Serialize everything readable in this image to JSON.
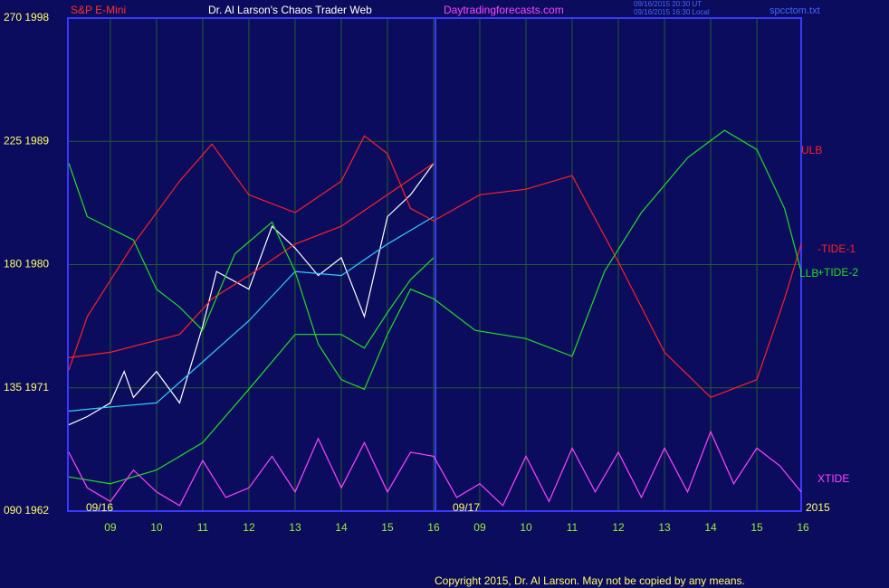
{
  "chart_data": {
    "type": "line",
    "title": "Dr. Al Larson's Chaos Trader Web",
    "symbol": "S&P E-Mini",
    "website": "Daytradingforecasts.com",
    "timestamps": [
      "09/16/2015 20:30 UT",
      "09/16/2015 16:30 Local"
    ],
    "file": "spcctom.txt",
    "dates": [
      "09/16",
      "09/17"
    ],
    "year": "2015",
    "copyright": "Copyright 2015, Dr. Al Larson. May not be copied by any means.",
    "grid": true,
    "xlim": [
      -0.92,
      14.96
    ],
    "xticks": [
      {
        "value": 0,
        "label": "09"
      },
      {
        "value": 1,
        "label": "10"
      },
      {
        "value": 2,
        "label": "11"
      },
      {
        "value": 3,
        "label": "12"
      },
      {
        "value": 4,
        "label": "13"
      },
      {
        "value": 5,
        "label": "14"
      },
      {
        "value": 6,
        "label": "15"
      },
      {
        "value": 7,
        "label": "16"
      },
      {
        "value": 8,
        "label": "09"
      },
      {
        "value": 9,
        "label": "10"
      },
      {
        "value": 10,
        "label": "11"
      },
      {
        "value": 11,
        "label": "12"
      },
      {
        "value": 12,
        "label": "13"
      },
      {
        "value": 13,
        "label": "14"
      },
      {
        "value": 14,
        "label": "15"
      },
      {
        "value": 15,
        "label": "16"
      }
    ],
    "ylim": [
      1962,
      1998
    ],
    "yticks": [
      {
        "value": 1962,
        "label": "090  1962"
      },
      {
        "value": 1971,
        "label": "135  1971"
      },
      {
        "value": 1980,
        "label": "180  1980"
      },
      {
        "value": 1989,
        "label": "225  1989"
      },
      {
        "value": 1998,
        "label": "270  1998"
      }
    ],
    "series": [
      {
        "color": "#ffffff",
        "x": [
          -0.9,
          -0.5,
          0,
          0.3,
          0.5,
          1,
          1.5,
          2,
          2.3,
          3,
          3.5,
          4,
          4.5,
          5,
          5.5,
          6,
          6.5,
          7
        ],
        "values": [
          1968.3,
          1968.9,
          1969.9,
          1972.2,
          1970.3,
          1972.2,
          1969.9,
          1975.5,
          1979.5,
          1978.2,
          1982.8,
          1981.2,
          1979.2,
          1980.5,
          1976.2,
          1983.5,
          1985.1,
          1987.4
        ]
      },
      {
        "color": "#33ccff",
        "x": [
          -0.9,
          0,
          1,
          2,
          3,
          4,
          5,
          6,
          7
        ],
        "values": [
          1969.3,
          1969.6,
          1969.9,
          1972.9,
          1975.9,
          1979.5,
          1979.2,
          1981.5,
          1983.5
        ]
      },
      {
        "name": "ULB",
        "color": "#ff2020",
        "x": [
          -0.9,
          0,
          1.5,
          2.2,
          3,
          4,
          5,
          6,
          7
        ],
        "values": [
          1973.2,
          1973.6,
          1974.9,
          1977.5,
          1979.2,
          1981.5,
          1982.8,
          1985.1,
          1987.4
        ]
      },
      {
        "name": "-TIDE-1",
        "color": "#ff2020",
        "x": [
          -0.9,
          -0.5,
          0.5,
          1.5,
          2.2,
          3,
          4,
          5,
          5.5,
          6,
          6.5,
          7,
          8,
          9,
          10,
          11,
          12,
          13,
          14,
          14.6,
          14.96
        ],
        "values": [
          1972.3,
          1976.2,
          1981.5,
          1986.1,
          1988.8,
          1985.1,
          1983.8,
          1986.1,
          1989.4,
          1988.1,
          1984.1,
          1983.2,
          1985.1,
          1985.5,
          1986.5,
          1980.2,
          1973.6,
          1970.3,
          1971.6,
          1977.5,
          1981.5
        ]
      },
      {
        "name": "LLB",
        "color": "#22dd22",
        "x": [
          -0.9,
          0,
          1,
          2,
          3,
          4,
          5,
          5.5,
          6,
          6.5,
          7
        ],
        "values": [
          1964.5,
          1964.0,
          1965.0,
          1967.0,
          1970.9,
          1974.9,
          1974.9,
          1973.9,
          1976.5,
          1978.9,
          1980.5
        ]
      },
      {
        "name": "+TIDE-2",
        "color": "#22dd22",
        "x": [
          -0.9,
          -0.5,
          0.5,
          1,
          1.5,
          2,
          2.7,
          3.5,
          4,
          4.5,
          5,
          5.5,
          6,
          6.5,
          7,
          7.9,
          9,
          10,
          10.7,
          11.5,
          12.5,
          13.3,
          14,
          14.6,
          14.96
        ],
        "values": [
          1987.4,
          1983.5,
          1981.8,
          1978.2,
          1976.9,
          1975.2,
          1980.8,
          1983.1,
          1979.5,
          1974.2,
          1971.6,
          1970.9,
          1974.9,
          1978.2,
          1977.5,
          1975.2,
          1974.6,
          1973.3,
          1979.5,
          1983.8,
          1987.8,
          1989.8,
          1988.4,
          1984.1,
          1979.5
        ]
      },
      {
        "name": "XTIDE",
        "color": "#ff44ff",
        "x": [
          -0.9,
          -0.5,
          0,
          0.5,
          1,
          1.5,
          2,
          2.5,
          3,
          3.5,
          4,
          4.5,
          5,
          5.5,
          6,
          6.5,
          7,
          7.5,
          8,
          8.5,
          9,
          9.5,
          10,
          10.5,
          11,
          11.5,
          12,
          12.5,
          13,
          13.5,
          14,
          14.5,
          14.96
        ],
        "values": [
          1966.3,
          1963.7,
          1962.7,
          1965.0,
          1963.4,
          1962.4,
          1965.7,
          1963.0,
          1963.7,
          1966.0,
          1963.4,
          1967.3,
          1963.7,
          1967.0,
          1963.4,
          1966.3,
          1966.0,
          1963.0,
          1964.0,
          1962.4,
          1966.0,
          1962.7,
          1966.6,
          1963.4,
          1966.3,
          1963.0,
          1966.6,
          1963.4,
          1967.8,
          1964.0,
          1966.6,
          1965.3,
          1963.4
        ]
      }
    ]
  }
}
